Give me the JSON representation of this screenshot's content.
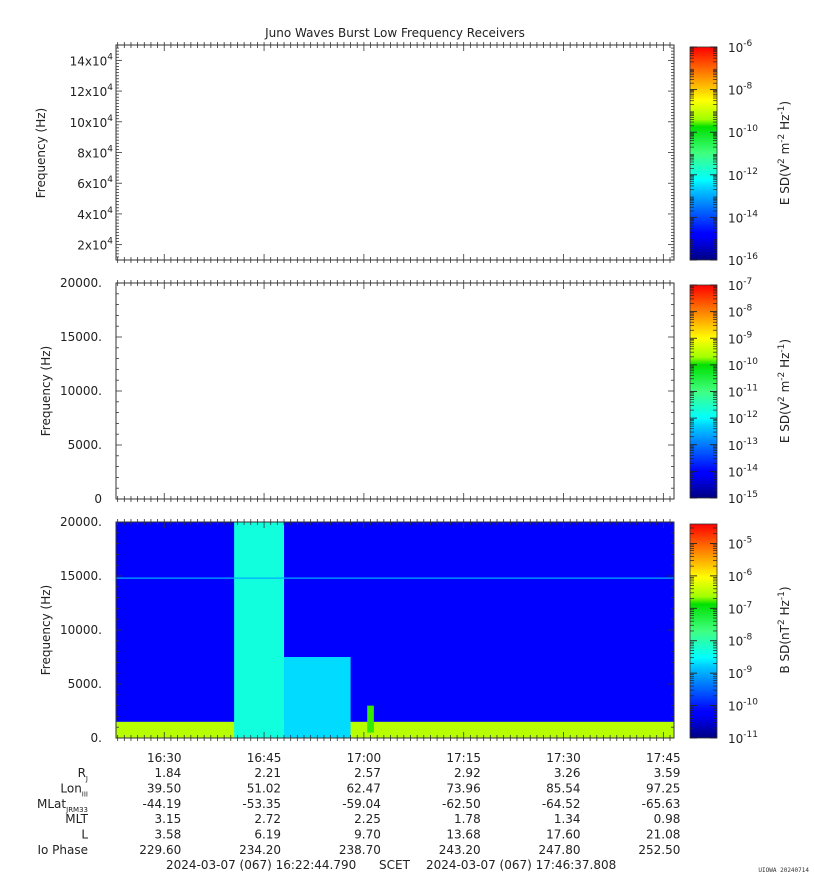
{
  "chart_data": [
    {
      "type": "heatmap",
      "title": "Juno Waves Burst Low Frequency Receivers",
      "ylabel": "Frequency (Hz)",
      "ylim": [
        10000,
        150000
      ],
      "yticks": [
        {
          "value": 20000,
          "mant": "2x10",
          "exp": "4"
        },
        {
          "value": 40000,
          "mant": "4x10",
          "exp": "4"
        },
        {
          "value": 60000,
          "mant": "6x10",
          "exp": "4"
        },
        {
          "value": 80000,
          "mant": "8x10",
          "exp": "4"
        },
        {
          "value": 100000,
          "mant": "10x10",
          "exp": "4"
        },
        {
          "value": 120000,
          "mant": "12x10",
          "exp": "4"
        },
        {
          "value": 140000,
          "mant": "14x10",
          "exp": "4"
        }
      ],
      "colorbar": {
        "label": "E SD(V2 m-2 Hz-1)",
        "scale": "log",
        "range": [
          -16,
          -6
        ],
        "ticks": [
          {
            "base": "10",
            "exp": "-6"
          },
          {
            "base": "10",
            "exp": "-8"
          },
          {
            "base": "10",
            "exp": "-10"
          },
          {
            "base": "10",
            "exp": "-12"
          },
          {
            "base": "10",
            "exp": "-14"
          },
          {
            "base": "10",
            "exp": "-16"
          }
        ]
      },
      "data": "no data shown (blank panel)"
    },
    {
      "type": "heatmap",
      "ylabel": "Frequency (Hz)",
      "ylim": [
        0,
        20000
      ],
      "yticks": [
        "20000.",
        "15000.",
        "10000.",
        "5000.",
        "0"
      ],
      "colorbar": {
        "label": "E SD(V2 m-2 Hz-1)",
        "scale": "log",
        "range": [
          -15,
          -7
        ],
        "ticks": [
          {
            "base": "10",
            "exp": "-7"
          },
          {
            "base": "10",
            "exp": "-8"
          },
          {
            "base": "10",
            "exp": "-9"
          },
          {
            "base": "10",
            "exp": "-10"
          },
          {
            "base": "10",
            "exp": "-11"
          },
          {
            "base": "10",
            "exp": "-12"
          },
          {
            "base": "10",
            "exp": "-13"
          },
          {
            "base": "10",
            "exp": "-14"
          },
          {
            "base": "10",
            "exp": "-15"
          }
        ]
      },
      "data": "no data shown (blank panel)"
    },
    {
      "type": "heatmap",
      "ylabel": "Frequency (Hz)",
      "ylim": [
        0,
        20000
      ],
      "yticks": [
        "20000.",
        "15000.",
        "10000.",
        "5000.",
        "0."
      ],
      "colorbar": {
        "label": "B SD(nT2 Hz-1)",
        "scale": "log",
        "range": [
          -11,
          -4.4
        ],
        "ticks": [
          {
            "base": "10",
            "exp": "-5"
          },
          {
            "base": "10",
            "exp": "-6"
          },
          {
            "base": "10",
            "exp": "-7"
          },
          {
            "base": "10",
            "exp": "-8"
          },
          {
            "base": "10",
            "exp": "-9"
          },
          {
            "base": "10",
            "exp": "-10"
          },
          {
            "base": "10",
            "exp": "-11"
          }
        ]
      },
      "x": {
        "start_min": 982.75,
        "end_min": 1066.6,
        "ticks": [
          {
            "label": "16:30",
            "min": 990
          },
          {
            "label": "16:45",
            "min": 1005
          },
          {
            "label": "17:00",
            "min": 1020
          },
          {
            "label": "17:15",
            "min": 1035
          },
          {
            "label": "17:30",
            "min": 1050
          },
          {
            "label": "17:45",
            "min": 1065
          }
        ]
      },
      "features": [
        {
          "name": "background",
          "freq_hz": [
            0,
            20000
          ],
          "log_psd": -10.2
        },
        {
          "name": "low-frequency band",
          "time": [
            "16:22:45",
            "17:46:37"
          ],
          "freq_hz": [
            0,
            1500
          ],
          "log_psd": -6.5
        },
        {
          "name": "broadband burst",
          "time": [
            "16:40:30",
            "16:48:00"
          ],
          "freq_hz": [
            0,
            20000
          ],
          "log_psd": -8.3
        },
        {
          "name": "emission decay",
          "time": [
            "16:48:00",
            "16:58:00"
          ],
          "freq_hz": [
            0,
            7500
          ],
          "log_psd": -8.7
        },
        {
          "name": "17:00 enhancement",
          "time": [
            "17:00:30",
            "17:01:30"
          ],
          "freq_hz": [
            500,
            3000
          ],
          "log_psd": -6.8
        },
        {
          "name": "narrowband line",
          "freq_hz": 14800,
          "log_psd": -9.0
        }
      ]
    }
  ],
  "ephemeris": {
    "row_labels": {
      "rj": {
        "main": "R",
        "sub": "J"
      },
      "lon": {
        "main": "Lon",
        "sub": "III"
      },
      "mlat": {
        "main": "MLat",
        "sub": "JRM33"
      },
      "mlt": {
        "main": "MLT",
        "sub": ""
      },
      "l": {
        "main": "L",
        "sub": ""
      },
      "io": {
        "main": "Io Phase",
        "sub": ""
      }
    },
    "columns": [
      {
        "time": "16:30",
        "rj": "1.84",
        "lon": "39.50",
        "mlat": "-44.19",
        "mlt": "3.15",
        "l": "3.58",
        "io": "229.60"
      },
      {
        "time": "16:45",
        "rj": "2.21",
        "lon": "51.02",
        "mlat": "-53.35",
        "mlt": "2.72",
        "l": "6.19",
        "io": "234.20"
      },
      {
        "time": "17:00",
        "rj": "2.57",
        "lon": "62.47",
        "mlat": "-59.04",
        "mlt": "2.25",
        "l": "9.70",
        "io": "238.70"
      },
      {
        "time": "17:15",
        "rj": "2.92",
        "lon": "73.96",
        "mlat": "-62.50",
        "mlt": "1.78",
        "l": "13.68",
        "io": "243.20"
      },
      {
        "time": "17:30",
        "rj": "3.26",
        "lon": "85.54",
        "mlat": "-64.52",
        "mlt": "1.34",
        "l": "17.60",
        "io": "247.80"
      },
      {
        "time": "17:45",
        "rj": "3.59",
        "lon": "97.25",
        "mlat": "-65.63",
        "mlt": "0.98",
        "l": "21.08",
        "io": "252.50"
      }
    ]
  },
  "footer": {
    "start": "2024-03-07 (067) 16:22:44.790",
    "scet": "SCET",
    "end": "2024-03-07 (067) 17:46:37.808"
  },
  "credit": "UIOWA 20240714"
}
